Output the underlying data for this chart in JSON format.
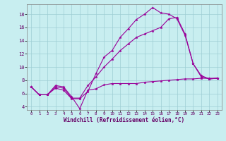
{
  "xlabel": "Windchill (Refroidissement éolien,°C)",
  "background_color": "#c8eef0",
  "line_color": "#990099",
  "xlim": [
    -0.5,
    23.5
  ],
  "ylim": [
    3.5,
    19.5
  ],
  "yticks": [
    4,
    6,
    8,
    10,
    12,
    14,
    16,
    18
  ],
  "xticks": [
    0,
    1,
    2,
    3,
    4,
    5,
    6,
    7,
    8,
    9,
    10,
    11,
    12,
    13,
    14,
    15,
    16,
    17,
    18,
    19,
    20,
    21,
    22,
    23
  ],
  "series": [
    {
      "x": [
        0,
        1,
        2,
        3,
        4,
        5,
        6,
        7,
        8,
        9,
        10,
        11,
        12,
        13,
        14,
        15,
        16,
        17,
        18,
        19,
        20,
        21,
        22,
        23
      ],
      "y": [
        7.0,
        5.8,
        5.8,
        7.2,
        7.0,
        5.5,
        3.7,
        6.5,
        6.7,
        7.3,
        7.5,
        7.5,
        7.5,
        7.5,
        7.7,
        7.8,
        7.9,
        8.0,
        8.1,
        8.2,
        8.2,
        8.3,
        8.3,
        8.3
      ]
    },
    {
      "x": [
        0,
        1,
        2,
        3,
        4,
        5,
        6,
        7,
        8,
        9,
        10,
        11,
        12,
        13,
        14,
        15,
        16,
        17,
        18,
        19,
        20,
        21,
        22,
        23
      ],
      "y": [
        7.0,
        5.8,
        5.8,
        7.0,
        6.8,
        5.3,
        5.3,
        7.2,
        8.5,
        10.0,
        11.2,
        12.5,
        13.5,
        14.5,
        15.0,
        15.5,
        16.0,
        17.3,
        17.5,
        15.0,
        10.5,
        8.7,
        8.2,
        8.3
      ]
    },
    {
      "x": [
        0,
        1,
        2,
        3,
        4,
        5,
        6,
        7,
        8,
        9,
        10,
        11,
        12,
        13,
        14,
        15,
        16,
        17,
        18,
        19,
        20,
        21,
        22,
        23
      ],
      "y": [
        7.0,
        5.8,
        5.8,
        6.8,
        6.5,
        5.2,
        5.2,
        6.3,
        9.0,
        11.5,
        12.5,
        14.5,
        15.8,
        17.2,
        18.0,
        19.0,
        18.2,
        18.0,
        17.3,
        14.8,
        10.5,
        8.5,
        8.2,
        8.3
      ]
    }
  ]
}
